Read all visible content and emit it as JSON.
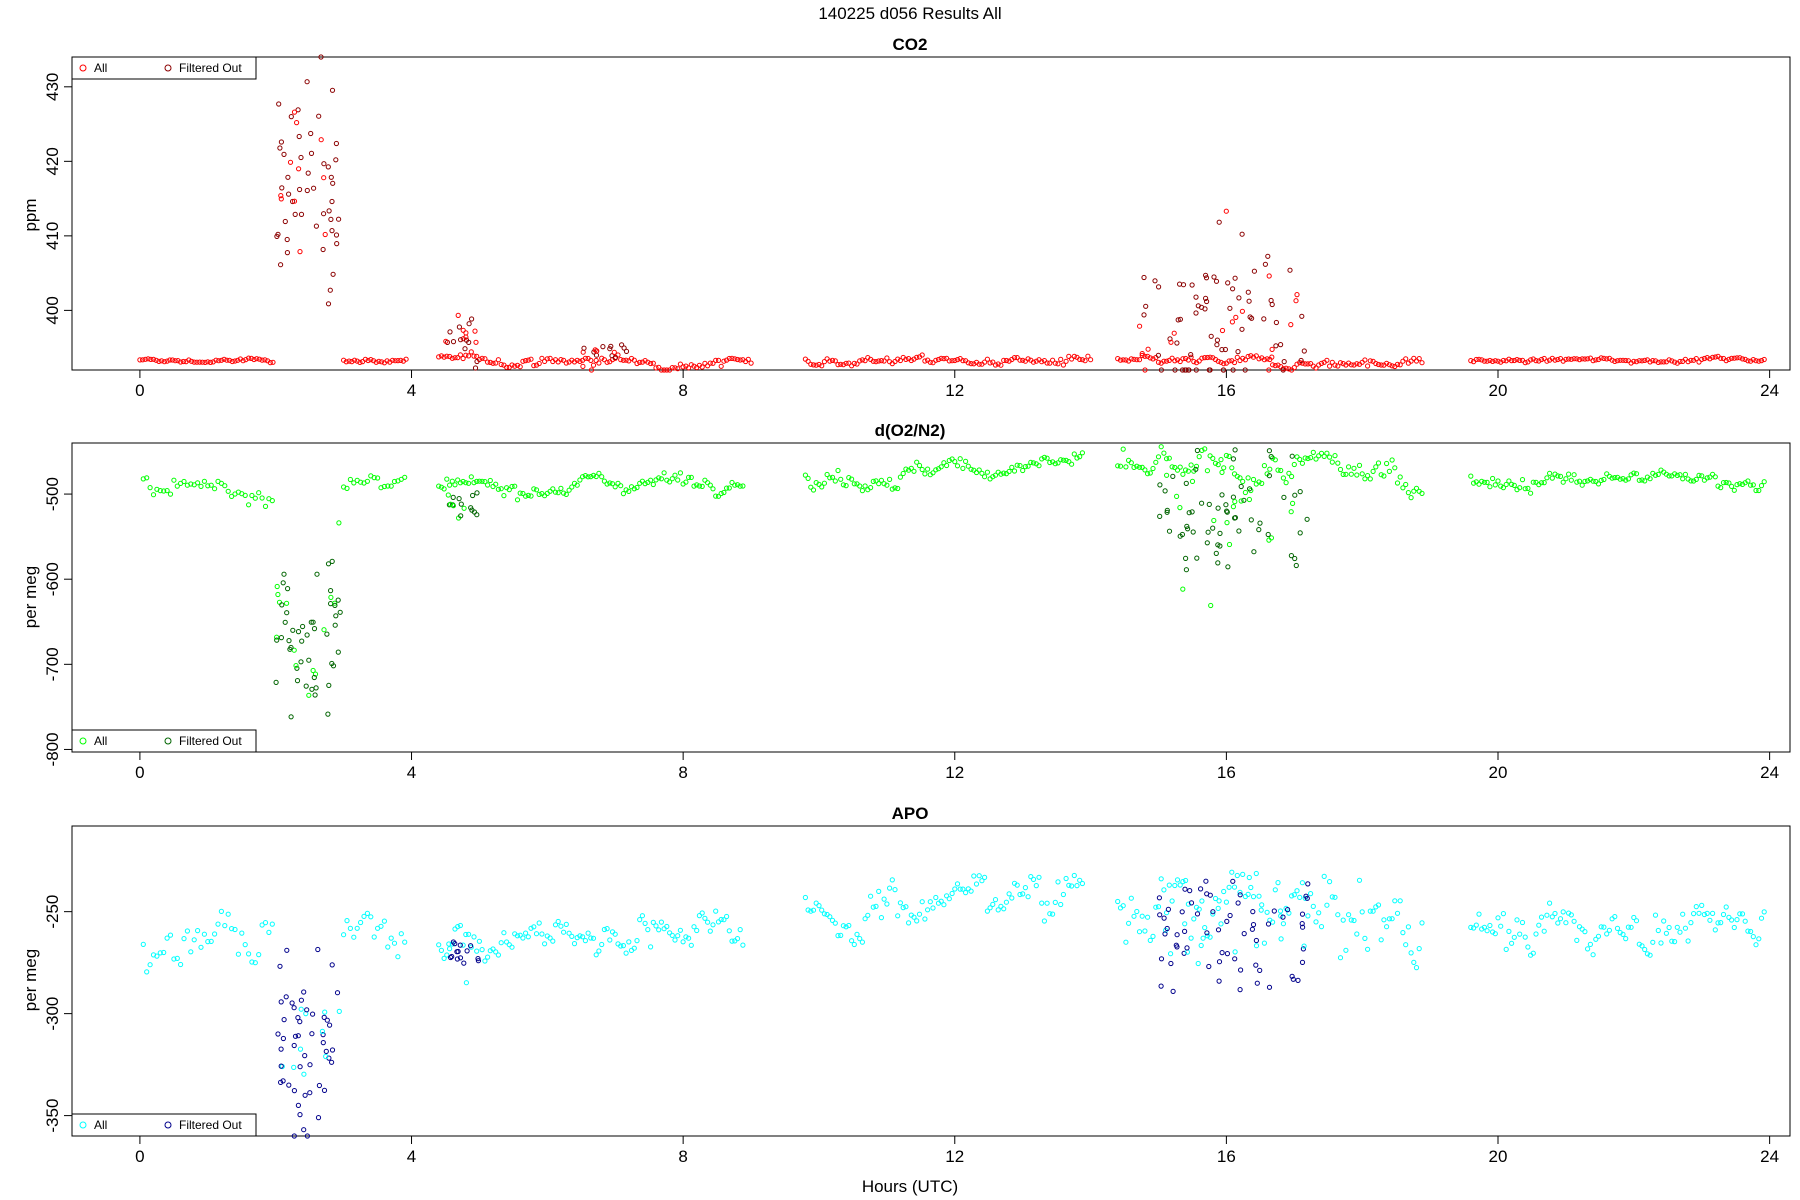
{
  "figure": {
    "title": "140225   d056   Results All",
    "xlabel": "Hours (UTC)"
  },
  "chart_data": [
    {
      "type": "scatter",
      "title": "CO2",
      "xlabel": "",
      "ylabel": "ppm",
      "xlim": [
        -1,
        24.3
      ],
      "ylim": [
        392,
        434
      ],
      "x_ticks": [
        0,
        4,
        8,
        12,
        16,
        20,
        24
      ],
      "y_ticks": [
        400,
        410,
        420,
        430
      ],
      "legend_position": "top-left",
      "colors": {
        "all": "#ff0000",
        "filtered": "#8b0000"
      },
      "series": [
        {
          "name": "All",
          "style": "all"
        },
        {
          "name": "Filtered Out",
          "style": "filtered"
        }
      ],
      "segments": [
        {
          "x": [
            0.0,
            2.0
          ],
          "base": 393.2,
          "noise": 0.2,
          "trend": 0,
          "step": 0.04
        },
        {
          "x": [
            3.0,
            3.95
          ],
          "base": 393.3,
          "noise": 0.2,
          "trend": 0,
          "step": 0.04
        },
        {
          "x": [
            4.4,
            9.0
          ],
          "base": 393.3,
          "noise": 0.4,
          "trend": -0.2,
          "step": 0.04
        },
        {
          "x": [
            9.8,
            14.0
          ],
          "base": 393.4,
          "noise": 0.4,
          "trend": -0.3,
          "step": 0.04
        },
        {
          "x": [
            14.4,
            18.9
          ],
          "base": 393.0,
          "noise": 0.4,
          "trend": 0,
          "step": 0.04
        },
        {
          "x": [
            19.6,
            23.95
          ],
          "base": 393.2,
          "noise": 0.2,
          "trend": 0.3,
          "step": 0.04
        }
      ],
      "events": [
        {
          "x": [
            2.0,
            2.95
          ],
          "peak": 423,
          "spread": 7,
          "n": 60
        },
        {
          "x": [
            4.5,
            5.0
          ],
          "peak": 397,
          "spread": 1.5,
          "n": 20
        },
        {
          "x": [
            6.5,
            7.2
          ],
          "peak": 394.5,
          "spread": 1.2,
          "n": 18
        },
        {
          "x": [
            14.7,
            17.2
          ],
          "peak": 398,
          "spread": 6,
          "n": 90
        }
      ]
    },
    {
      "type": "scatter",
      "title": "d(O2/N2)",
      "xlabel": "",
      "ylabel": "per meg",
      "xlim": [
        -1,
        24.3
      ],
      "ylim": [
        -803,
        -440
      ],
      "x_ticks": [
        0,
        4,
        8,
        12,
        16,
        20,
        24
      ],
      "y_ticks": [
        -500,
        -600,
        -700,
        -800
      ],
      "legend_position": "bottom-left",
      "colors": {
        "all": "#00ff00",
        "filtered": "#006400"
      },
      "series": [
        {
          "name": "All",
          "style": "all"
        },
        {
          "name": "Filtered Out",
          "style": "filtered"
        }
      ],
      "segments": [
        {
          "x": [
            0.05,
            2.0
          ],
          "base": -492,
          "noise": 8,
          "trend": 0,
          "step": 0.05
        },
        {
          "x": [
            3.0,
            3.9
          ],
          "base": -493,
          "noise": 6,
          "trend": 3,
          "step": 0.05
        },
        {
          "x": [
            4.4,
            8.9
          ],
          "base": -495,
          "noise": 6,
          "trend": 15,
          "step": 0.04
        },
        {
          "x": [
            9.8,
            13.9
          ],
          "base": -485,
          "noise": 7,
          "trend": 25,
          "step": 0.04
        },
        {
          "x": [
            14.4,
            18.9
          ],
          "base": -475,
          "noise": 12,
          "trend": 0,
          "step": 0.04
        },
        {
          "x": [
            19.6,
            23.95
          ],
          "base": -487,
          "noise": 6,
          "trend": 5,
          "step": 0.04
        }
      ],
      "events": [
        {
          "x": [
            2.0,
            2.95
          ],
          "peak": -710,
          "spread": 45,
          "n": 60
        },
        {
          "x": [
            4.5,
            5.0
          ],
          "peak": -515,
          "spread": 10,
          "n": 18
        },
        {
          "x": [
            15.0,
            17.2
          ],
          "peak": -530,
          "spread": 40,
          "n": 80
        }
      ]
    },
    {
      "type": "scatter",
      "title": "APO",
      "xlabel": "Hours (UTC)",
      "ylabel": "per meg",
      "xlim": [
        -1,
        24.3
      ],
      "ylim": [
        -360,
        -208
      ],
      "x_ticks": [
        0,
        4,
        8,
        12,
        16,
        20,
        24
      ],
      "y_ticks": [
        -250,
        -300,
        -350
      ],
      "legend_position": "bottom-left",
      "colors": {
        "all": "#00ffff",
        "filtered": "#00008b"
      },
      "series": [
        {
          "name": "All",
          "style": "all"
        },
        {
          "name": "Filtered Out",
          "style": "filtered"
        }
      ],
      "segments": [
        {
          "x": [
            0.05,
            2.0
          ],
          "base": -262,
          "noise": 9,
          "trend": 0,
          "step": 0.05
        },
        {
          "x": [
            3.0,
            3.9
          ],
          "base": -262,
          "noise": 7,
          "trend": 5,
          "step": 0.05
        },
        {
          "x": [
            4.4,
            8.9
          ],
          "base": -266,
          "noise": 6,
          "trend": 12,
          "step": 0.04
        },
        {
          "x": [
            9.8,
            13.9
          ],
          "base": -253,
          "noise": 7,
          "trend": 18,
          "step": 0.04
        },
        {
          "x": [
            14.4,
            18.9
          ],
          "base": -248,
          "noise": 11,
          "trend": -5,
          "step": 0.04
        },
        {
          "x": [
            19.6,
            23.95
          ],
          "base": -260,
          "noise": 7,
          "trend": 5,
          "step": 0.04
        }
      ],
      "events": [
        {
          "x": [
            2.0,
            2.95
          ],
          "peak": -325,
          "spread": 22,
          "n": 60
        },
        {
          "x": [
            4.5,
            5.0
          ],
          "peak": -272,
          "spread": 5,
          "n": 16
        },
        {
          "x": [
            15.0,
            17.2
          ],
          "peak": -262,
          "spread": 16,
          "n": 80
        }
      ]
    }
  ]
}
